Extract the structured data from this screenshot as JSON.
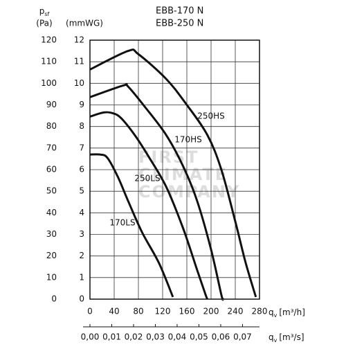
{
  "chart_data": {
    "type": "line",
    "title": [
      "EBB-170 N",
      "EBB-250 N"
    ],
    "y_label": {
      "symbol": "p",
      "subscript": "sf",
      "unit": "(mmWG)"
    },
    "y2_label": {
      "symbol": "p",
      "subscript": "sf",
      "unit": "(Pa)"
    },
    "x_label": {
      "symbol": "q",
      "subscript": "v",
      "unit": "[m³/h]"
    },
    "x2_label": {
      "symbol": "q",
      "subscript": "v",
      "unit": "[m³/s]"
    },
    "watermark": [
      "FIRST",
      "CLIMATE",
      "COMPANY"
    ],
    "xlim": [
      0,
      280
    ],
    "xticks": [
      0,
      40,
      80,
      120,
      160,
      200,
      240,
      280
    ],
    "ylim": [
      0,
      12
    ],
    "yticks": [
      0,
      1,
      2,
      3,
      4,
      5,
      6,
      7,
      8,
      9,
      10,
      11,
      12
    ],
    "y2lim": [
      0,
      120
    ],
    "y2ticks": [
      0,
      10,
      20,
      30,
      40,
      50,
      60,
      70,
      80,
      90,
      100,
      110,
      120
    ],
    "x2lim": [
      0,
      0.0778
    ],
    "x2ticks": [
      {
        "value": 0,
        "label": "0,00"
      },
      {
        "value": 0.01,
        "label": "0,01"
      },
      {
        "value": 0.02,
        "label": "0,02"
      },
      {
        "value": 0.03,
        "label": "0,03"
      },
      {
        "value": 0.04,
        "label": "0,04"
      },
      {
        "value": 0.05,
        "label": "0,05"
      },
      {
        "value": 0.06,
        "label": "0,06"
      },
      {
        "value": 0.07,
        "label": "0,07"
      }
    ],
    "grid": true,
    "series": [
      {
        "name": "250HS",
        "color": "#111111",
        "x": [
          0,
          63,
          80,
          126,
          160,
          194,
          217,
          240,
          257,
          274
        ],
        "values": [
          10.64,
          11.5,
          11.35,
          10.2,
          9.0,
          7.6,
          6.0,
          3.6,
          1.7,
          0.1
        ]
      },
      {
        "name": "170HS",
        "color": "#111111",
        "x": [
          0,
          55,
          63,
          91,
          126,
          154,
          177,
          200,
          217,
          220
        ],
        "values": [
          9.36,
          9.9,
          9.85,
          8.9,
          7.6,
          6.15,
          4.55,
          2.3,
          0.2,
          0
        ]
      },
      {
        "name": "250LS",
        "color": "#111111",
        "x": [
          0,
          23,
          37,
          51,
          74,
          97,
          126,
          154,
          177,
          191,
          194
        ],
        "values": [
          8.46,
          8.65,
          8.62,
          8.4,
          7.6,
          6.6,
          5.2,
          3.27,
          1.35,
          0.2,
          0
        ]
      },
      {
        "name": "170LS",
        "color": "#111111",
        "x": [
          0,
          17,
          29,
          46,
          63,
          86,
          114,
          137
        ],
        "values": [
          6.7,
          6.7,
          6.54,
          5.67,
          4.55,
          3.1,
          1.67,
          0.1
        ]
      }
    ]
  }
}
